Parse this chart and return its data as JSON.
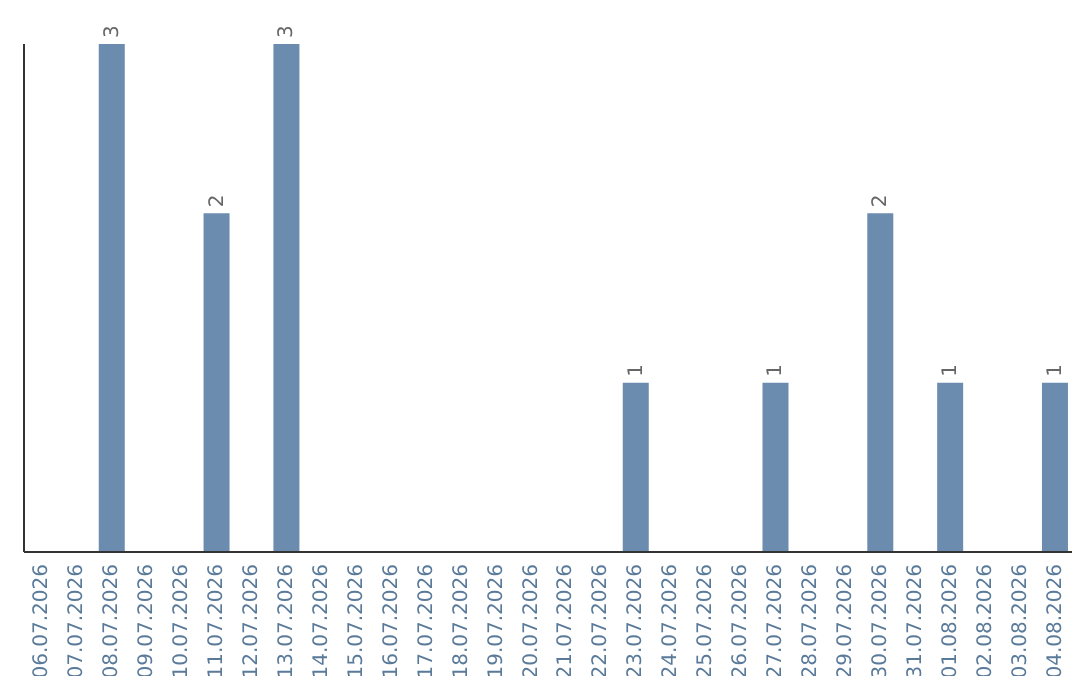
{
  "chart_data": {
    "type": "bar",
    "categories": [
      "06.07.2026",
      "07.07.2026",
      "08.07.2026",
      "09.07.2026",
      "10.07.2026",
      "11.07.2026",
      "12.07.2026",
      "13.07.2026",
      "14.07.2026",
      "15.07.2026",
      "16.07.2026",
      "17.07.2026",
      "18.07.2026",
      "19.07.2026",
      "20.07.2026",
      "21.07.2026",
      "22.07.2026",
      "23.07.2026",
      "24.07.2026",
      "25.07.2026",
      "26.07.2026",
      "27.07.2026",
      "28.07.2026",
      "29.07.2026",
      "30.07.2026",
      "31.07.2026",
      "01.08.2026",
      "02.08.2026",
      "03.08.2026",
      "04.08.2026"
    ],
    "values": [
      0,
      0,
      3,
      0,
      0,
      2,
      0,
      3,
      0,
      0,
      0,
      0,
      0,
      0,
      0,
      0,
      0,
      1,
      0,
      0,
      0,
      1,
      0,
      0,
      2,
      0,
      1,
      0,
      0,
      1
    ],
    "value_labels": [
      null,
      null,
      "3",
      null,
      null,
      "2",
      null,
      "3",
      null,
      null,
      null,
      null,
      null,
      null,
      null,
      null,
      null,
      "1",
      null,
      null,
      null,
      "1",
      null,
      null,
      "2",
      null,
      "1",
      null,
      null,
      "1"
    ],
    "color": "#6b8cae",
    "grid": false,
    "legend": false,
    "tick_labels": "x"
  }
}
